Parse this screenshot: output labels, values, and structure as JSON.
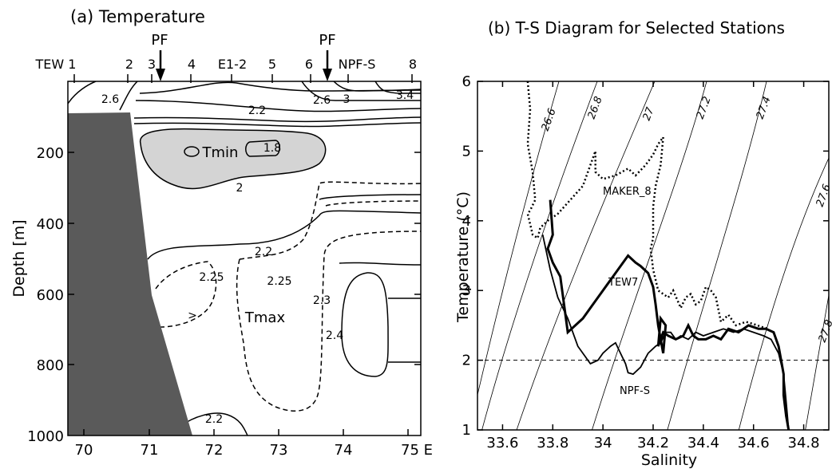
{
  "chart_data": [
    {
      "type": "contour",
      "title": "(a) Temperature",
      "ylabel": "Depth [m]",
      "xlabel": "",
      "xlim": [
        69.75,
        75.2
      ],
      "ylim": [
        1000,
        50
      ],
      "x_ticks": [
        70,
        71,
        72,
        73,
        74,
        75
      ],
      "x_tick_labels": [
        "70",
        "71",
        "72",
        "73",
        "74",
        "75 E"
      ],
      "y_ticks": [
        200,
        400,
        600,
        800,
        1000
      ],
      "y_tick_labels": [
        "200",
        "400",
        "600",
        "800",
        "1000"
      ],
      "stations": [
        {
          "label": "TEW 1",
          "lon": 69.9
        },
        {
          "label": "2",
          "lon": 70.65
        },
        {
          "label": "3",
          "lon": 70.98
        },
        {
          "label": "4",
          "lon": 71.57
        },
        {
          "label": "E1-2",
          "lon": 72.15
        },
        {
          "label": "5",
          "lon": 72.78
        },
        {
          "label": "6",
          "lon": 73.38
        },
        {
          "label": "NPF-S",
          "lon": 73.95
        },
        {
          "label": "8",
          "lon": 75.0
        }
      ],
      "front_markers": [
        {
          "label": "PF",
          "lon": 71.1
        },
        {
          "label": "PF",
          "lon": 73.7
        }
      ],
      "contour_labels": [
        {
          "text": "2.6",
          "lon": 70.35,
          "depth": 105
        },
        {
          "text": "2.2",
          "lon": 72.85,
          "depth": 125
        },
        {
          "text": "2.6",
          "lon": 73.55,
          "depth": 85
        },
        {
          "text": "3",
          "lon": 73.88,
          "depth": 85
        },
        {
          "text": "3.4",
          "lon": 74.85,
          "depth": 75
        },
        {
          "text": "1.8",
          "lon": 72.97,
          "depth": 183
        },
        {
          "text": "2",
          "lon": 72.2,
          "depth": 300
        },
        {
          "text": "2.2",
          "lon": 72.85,
          "depth": 495
        },
        {
          "text": "2.25",
          "lon": 71.95,
          "depth": 558
        },
        {
          "text": "2.25",
          "lon": 73.08,
          "depth": 568
        },
        {
          "text": "2.3",
          "lon": 73.66,
          "depth": 620
        },
        {
          "text": "2.4",
          "lon": 73.75,
          "depth": 720
        },
        {
          "text": "2.2",
          "lon": 71.95,
          "depth": 938
        },
        {
          "text": ">",
          "lon": 71.75,
          "depth": 680
        }
      ],
      "region_labels": [
        {
          "text": "Tmin",
          "lon": 72.45,
          "depth": 205
        },
        {
          "text": "Tmax",
          "lon": 73.05,
          "depth": 690
        }
      ],
      "colors": {
        "bathymetry": "#5a5a5a",
        "tmin_fill": "#d4d4d4",
        "line": "#000000"
      }
    },
    {
      "type": "line",
      "title": "(b) T-S Diagram for Selected Stations",
      "xlabel": "Salinity",
      "ylabel": "Temperature (°C)",
      "xlim": [
        33.5,
        34.9
      ],
      "ylim": [
        1,
        6
      ],
      "x_ticks": [
        33.6,
        33.8,
        34,
        34.2,
        34.4,
        34.6,
        34.8
      ],
      "x_tick_labels": [
        "33.6",
        "33.8",
        "34",
        "34.2",
        "34.4",
        "34.6",
        "34.8"
      ],
      "y_ticks": [
        1,
        2,
        3,
        4,
        5,
        6
      ],
      "y_tick_labels": [
        "1",
        "2",
        "3",
        "4",
        "5",
        "6"
      ],
      "reference_line_temperature": 2,
      "isopycnal_labels": [
        "26.6",
        "26.8",
        "27",
        "27.2",
        "27.4",
        "27.6",
        "27.8"
      ],
      "series": [
        {
          "name": "MAKER_8",
          "style": "dotted",
          "x": [
            33.7,
            33.71,
            33.7,
            33.72,
            33.73,
            33.71,
            33.7,
            33.72,
            33.74,
            33.75,
            33.78,
            33.82,
            33.87,
            33.92,
            33.95,
            33.97,
            33.97,
            34.0,
            34.05,
            34.1,
            34.13,
            34.17,
            34.2,
            34.22,
            34.24,
            34.23,
            34.21,
            34.2,
            34.2,
            34.19,
            34.2,
            34.22,
            34.24,
            34.26,
            34.28,
            34.31,
            34.33,
            34.35,
            34.37,
            34.39,
            34.41,
            34.43,
            34.45,
            34.47,
            34.5,
            34.53,
            34.57,
            34.6,
            34.63,
            34.66
          ],
          "y": [
            6.0,
            5.6,
            5.1,
            4.7,
            4.3,
            4.15,
            4.1,
            3.8,
            3.75,
            3.9,
            4.0,
            4.1,
            4.3,
            4.5,
            4.8,
            5.0,
            4.7,
            4.6,
            4.65,
            4.75,
            4.65,
            4.8,
            4.95,
            5.1,
            5.2,
            4.8,
            4.5,
            4.2,
            3.75,
            3.6,
            3.3,
            3.0,
            2.95,
            2.9,
            3.0,
            2.75,
            2.9,
            2.95,
            2.8,
            2.85,
            3.05,
            3.0,
            2.9,
            2.55,
            2.65,
            2.5,
            2.55,
            2.52,
            2.48,
            2.45
          ]
        },
        {
          "name": "TEW7",
          "style": "thick",
          "x": [
            33.79,
            33.8,
            33.78,
            33.8,
            33.83,
            33.86,
            33.92,
            34.0,
            34.06,
            34.1,
            34.13,
            34.15,
            34.18,
            34.2,
            34.21,
            34.22,
            34.23,
            34.24,
            34.25,
            34.23,
            34.22,
            34.24,
            34.26,
            34.29,
            34.32,
            34.34,
            34.36,
            34.38,
            34.41,
            34.44,
            34.47,
            34.5,
            34.54,
            34.58,
            34.62,
            34.65,
            34.68,
            34.7,
            34.71,
            34.72,
            34.72,
            34.73,
            34.74
          ],
          "y": [
            4.3,
            3.8,
            3.6,
            3.4,
            3.2,
            2.4,
            2.6,
            3.0,
            3.3,
            3.5,
            3.4,
            3.35,
            3.25,
            3.05,
            2.8,
            2.5,
            2.3,
            2.1,
            2.5,
            2.6,
            2.2,
            2.4,
            2.35,
            2.3,
            2.35,
            2.5,
            2.35,
            2.3,
            2.3,
            2.35,
            2.3,
            2.45,
            2.4,
            2.5,
            2.45,
            2.45,
            2.4,
            2.2,
            2.0,
            1.8,
            1.5,
            1.2,
            1.0
          ]
        },
        {
          "name": "NPF-S",
          "style": "solid",
          "x": [
            33.76,
            33.79,
            33.82,
            33.86,
            33.9,
            33.95,
            33.98,
            34.0,
            34.03,
            34.05,
            34.07,
            34.09,
            34.1,
            34.12,
            34.15,
            34.18,
            34.21,
            34.23,
            34.25,
            34.27,
            34.29,
            34.31,
            34.34,
            34.37,
            34.4,
            34.44,
            34.48,
            34.52,
            34.56,
            34.6,
            34.64,
            34.67,
            34.7,
            34.72,
            34.73,
            34.74
          ],
          "y": [
            3.8,
            3.3,
            2.9,
            2.6,
            2.2,
            1.95,
            2.0,
            2.1,
            2.2,
            2.25,
            2.1,
            1.95,
            1.82,
            1.8,
            1.9,
            2.1,
            2.2,
            2.25,
            2.4,
            2.4,
            2.3,
            2.35,
            2.3,
            2.4,
            2.35,
            2.4,
            2.45,
            2.4,
            2.45,
            2.4,
            2.35,
            2.3,
            2.1,
            1.8,
            1.4,
            1.0
          ]
        }
      ]
    }
  ]
}
